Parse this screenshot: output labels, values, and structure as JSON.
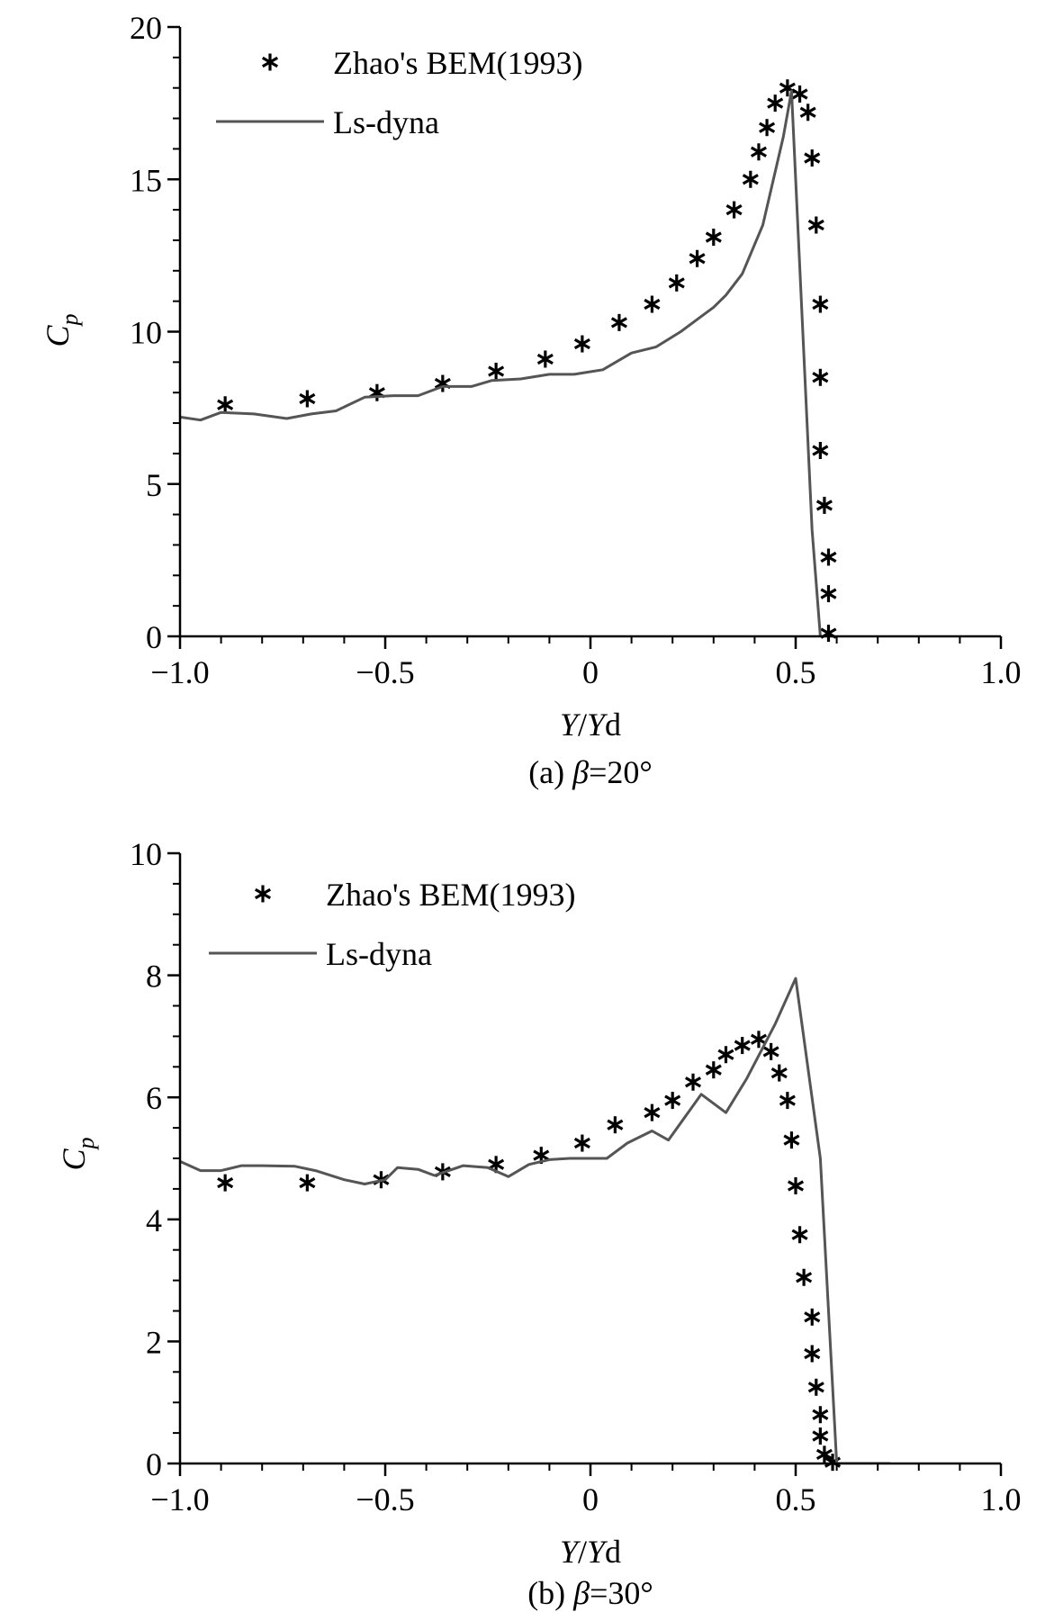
{
  "panels": [
    {
      "caption_prefix": "(a) ",
      "caption_symbol": "β",
      "caption_suffix": "=20°",
      "xlabel_var1": "Y",
      "xlabel_sep": "/",
      "xlabel_var2": "Y",
      "xlabel_sub": "d",
      "ylabel_var": "C",
      "ylabel_sub": "p"
    },
    {
      "caption_prefix": "(b) ",
      "caption_symbol": "β",
      "caption_suffix": "=30°",
      "xlabel_var1": "Y",
      "xlabel_sep": "/",
      "xlabel_var2": "Y",
      "xlabel_sub": "d",
      "ylabel_var": "C",
      "ylabel_sub": "p"
    }
  ],
  "chart_data": [
    {
      "type": "line",
      "xlim": [
        -1.0,
        1.0
      ],
      "ylim": [
        0,
        20
      ],
      "xticks": [
        -1.0,
        -0.5,
        0,
        0.5,
        1.0
      ],
      "xtick_labels": [
        "−1.0",
        "−0.5",
        "0",
        "0.5",
        "1.0"
      ],
      "yticks": [
        0,
        5,
        10,
        15,
        20
      ],
      "ytick_labels": [
        "0",
        "5",
        "10",
        "15",
        "20"
      ],
      "grid": false,
      "legend_position": "top-left",
      "series": [
        {
          "name": "Zhao's BEM(1993)",
          "kind": "scatter",
          "marker": "asterisk",
          "color": "#000000",
          "points": [
            [
              -0.89,
              7.6
            ],
            [
              -0.69,
              7.8
            ],
            [
              -0.52,
              8.0
            ],
            [
              -0.36,
              8.3
            ],
            [
              -0.23,
              8.7
            ],
            [
              -0.11,
              9.1
            ],
            [
              -0.02,
              9.6
            ],
            [
              0.07,
              10.3
            ],
            [
              0.15,
              10.9
            ],
            [
              0.21,
              11.6
            ],
            [
              0.26,
              12.4
            ],
            [
              0.3,
              13.1
            ],
            [
              0.35,
              14.0
            ],
            [
              0.39,
              15.0
            ],
            [
              0.41,
              15.9
            ],
            [
              0.43,
              16.7
            ],
            [
              0.45,
              17.5
            ],
            [
              0.48,
              18.0
            ],
            [
              0.51,
              17.8
            ],
            [
              0.53,
              17.2
            ],
            [
              0.54,
              15.7
            ],
            [
              0.55,
              13.5
            ],
            [
              0.56,
              10.9
            ],
            [
              0.56,
              8.5
            ],
            [
              0.56,
              6.1
            ],
            [
              0.57,
              4.3
            ],
            [
              0.58,
              2.6
            ],
            [
              0.58,
              1.4
            ],
            [
              0.58,
              0.1
            ]
          ]
        },
        {
          "name": "Ls-dyna",
          "kind": "line",
          "color": "#555555",
          "points": [
            [
              -1.0,
              7.2
            ],
            [
              -0.95,
              7.1
            ],
            [
              -0.9,
              7.35
            ],
            [
              -0.82,
              7.3
            ],
            [
              -0.74,
              7.15
            ],
            [
              -0.68,
              7.3
            ],
            [
              -0.62,
              7.4
            ],
            [
              -0.55,
              7.85
            ],
            [
              -0.48,
              7.9
            ],
            [
              -0.42,
              7.9
            ],
            [
              -0.36,
              8.2
            ],
            [
              -0.29,
              8.2
            ],
            [
              -0.24,
              8.4
            ],
            [
              -0.17,
              8.45
            ],
            [
              -0.1,
              8.6
            ],
            [
              -0.04,
              8.6
            ],
            [
              0.03,
              8.75
            ],
            [
              0.1,
              9.3
            ],
            [
              0.16,
              9.5
            ],
            [
              0.22,
              10.0
            ],
            [
              0.27,
              10.5
            ],
            [
              0.3,
              10.8
            ],
            [
              0.33,
              11.2
            ],
            [
              0.37,
              11.9
            ],
            [
              0.42,
              13.5
            ],
            [
              0.47,
              16.4
            ],
            [
              0.49,
              17.9
            ],
            [
              0.54,
              3.5
            ],
            [
              0.56,
              0.0
            ]
          ]
        }
      ]
    },
    {
      "type": "line",
      "xlim": [
        -1.0,
        1.0
      ],
      "ylim": [
        0,
        10
      ],
      "xticks": [
        -1.0,
        -0.5,
        0,
        0.5,
        1.0
      ],
      "xtick_labels": [
        "−1.0",
        "−0.5",
        "0",
        "0.5",
        "1.0"
      ],
      "yticks": [
        0,
        2,
        4,
        6,
        8,
        10
      ],
      "ytick_labels": [
        "0",
        "2",
        "4",
        "6",
        "8",
        "10"
      ],
      "grid": false,
      "legend_position": "top-left",
      "series": [
        {
          "name": "Zhao's BEM(1993)",
          "kind": "scatter",
          "marker": "asterisk",
          "color": "#000000",
          "points": [
            [
              -0.89,
              4.6
            ],
            [
              -0.69,
              4.6
            ],
            [
              -0.51,
              4.65
            ],
            [
              -0.36,
              4.78
            ],
            [
              -0.23,
              4.9
            ],
            [
              -0.12,
              5.05
            ],
            [
              -0.02,
              5.25
            ],
            [
              0.06,
              5.55
            ],
            [
              0.15,
              5.75
            ],
            [
              0.2,
              5.95
            ],
            [
              0.25,
              6.25
            ],
            [
              0.3,
              6.45
            ],
            [
              0.33,
              6.7
            ],
            [
              0.37,
              6.85
            ],
            [
              0.41,
              6.95
            ],
            [
              0.44,
              6.75
            ],
            [
              0.46,
              6.4
            ],
            [
              0.48,
              5.95
            ],
            [
              0.49,
              5.3
            ],
            [
              0.5,
              4.55
            ],
            [
              0.51,
              3.75
            ],
            [
              0.52,
              3.05
            ],
            [
              0.54,
              2.4
            ],
            [
              0.54,
              1.8
            ],
            [
              0.55,
              1.25
            ],
            [
              0.56,
              0.8
            ],
            [
              0.56,
              0.45
            ],
            [
              0.57,
              0.15
            ],
            [
              0.59,
              0.02
            ]
          ]
        },
        {
          "name": "Ls-dyna",
          "kind": "line",
          "color": "#555555",
          "points": [
            [
              -1.0,
              4.95
            ],
            [
              -0.95,
              4.8
            ],
            [
              -0.9,
              4.8
            ],
            [
              -0.85,
              4.88
            ],
            [
              -0.8,
              4.88
            ],
            [
              -0.72,
              4.87
            ],
            [
              -0.67,
              4.8
            ],
            [
              -0.6,
              4.65
            ],
            [
              -0.55,
              4.58
            ],
            [
              -0.5,
              4.65
            ],
            [
              -0.47,
              4.85
            ],
            [
              -0.42,
              4.82
            ],
            [
              -0.38,
              4.72
            ],
            [
              -0.31,
              4.88
            ],
            [
              -0.25,
              4.85
            ],
            [
              -0.2,
              4.7
            ],
            [
              -0.15,
              4.9
            ],
            [
              -0.1,
              4.98
            ],
            [
              -0.05,
              5.0
            ],
            [
              0.04,
              5.0
            ],
            [
              0.09,
              5.25
            ],
            [
              0.15,
              5.45
            ],
            [
              0.19,
              5.3
            ],
            [
              0.27,
              6.05
            ],
            [
              0.33,
              5.75
            ],
            [
              0.38,
              6.3
            ],
            [
              0.45,
              7.2
            ],
            [
              0.5,
              7.95
            ],
            [
              0.56,
              5.0
            ],
            [
              0.6,
              0.0
            ],
            [
              0.73,
              0.0
            ]
          ]
        }
      ]
    }
  ]
}
